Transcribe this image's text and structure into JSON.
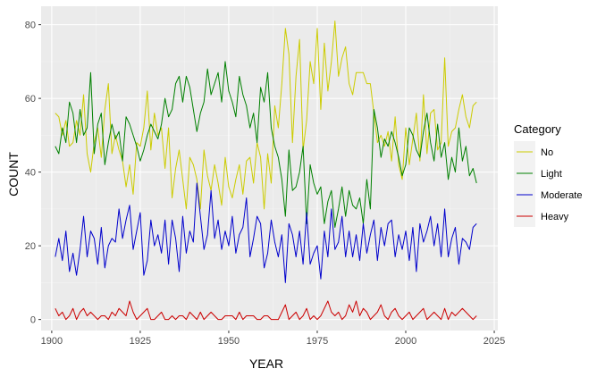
{
  "chart_data": {
    "type": "line",
    "title": "",
    "xlabel": "YEAR",
    "ylabel": "COUNT",
    "xlim": [
      1897,
      2026
    ],
    "ylim": [
      -3,
      85
    ],
    "x_ticks": [
      1900,
      1925,
      1950,
      1975,
      2000,
      2025
    ],
    "y_ticks": [
      0,
      20,
      40,
      60,
      80
    ],
    "grid": true,
    "legend": {
      "title": "Category",
      "position": "right"
    },
    "x": [
      1901,
      1902,
      1903,
      1904,
      1905,
      1906,
      1907,
      1908,
      1909,
      1910,
      1911,
      1912,
      1913,
      1914,
      1915,
      1916,
      1917,
      1918,
      1919,
      1920,
      1921,
      1922,
      1923,
      1924,
      1925,
      1926,
      1927,
      1928,
      1929,
      1930,
      1931,
      1932,
      1933,
      1934,
      1935,
      1936,
      1937,
      1938,
      1939,
      1940,
      1941,
      1942,
      1943,
      1944,
      1945,
      1946,
      1947,
      1948,
      1949,
      1950,
      1951,
      1952,
      1953,
      1954,
      1955,
      1956,
      1957,
      1958,
      1959,
      1960,
      1961,
      1962,
      1963,
      1964,
      1965,
      1966,
      1967,
      1968,
      1969,
      1970,
      1971,
      1972,
      1973,
      1974,
      1975,
      1976,
      1977,
      1978,
      1979,
      1980,
      1981,
      1982,
      1983,
      1984,
      1985,
      1986,
      1987,
      1988,
      1989,
      1990,
      1991,
      1992,
      1993,
      1994,
      1995,
      1996,
      1997,
      1998,
      1999,
      2000,
      2001,
      2002,
      2003,
      2004,
      2005,
      2006,
      2007,
      2008,
      2009,
      2010,
      2011,
      2012,
      2013,
      2014,
      2015,
      2016,
      2017,
      2018,
      2019,
      2020
    ],
    "series": [
      {
        "name": "No",
        "color": "#cccc00",
        "values": [
          56,
          55,
          50,
          54,
          47,
          48,
          54,
          50,
          61,
          45,
          40,
          48,
          52,
          44,
          57,
          64,
          45,
          50,
          46,
          43,
          36,
          42,
          34,
          48,
          47,
          52,
          62,
          46,
          56,
          50,
          52,
          41,
          52,
          33,
          41,
          46,
          38,
          30,
          44,
          42,
          38,
          30,
          46,
          39,
          35,
          42,
          37,
          31,
          44,
          36,
          33,
          38,
          42,
          34,
          43,
          44,
          37,
          48,
          44,
          30,
          45,
          37,
          58,
          52,
          64,
          79,
          72,
          48,
          66,
          76,
          46,
          54,
          70,
          64,
          79,
          57,
          75,
          62,
          70,
          81,
          66,
          71,
          74,
          64,
          61,
          67,
          67,
          67,
          64,
          64,
          56,
          48,
          50,
          47,
          51,
          43,
          55,
          42,
          38,
          52,
          42,
          49,
          56,
          43,
          61,
          45,
          56,
          57,
          46,
          48,
          71,
          47,
          51,
          52,
          57,
          61,
          55,
          52,
          58,
          59
        ]
      },
      {
        "name": "Light",
        "color": "#008000",
        "values": [
          47,
          45,
          52,
          48,
          59,
          56,
          48,
          57,
          50,
          52,
          67,
          45,
          53,
          56,
          42,
          48,
          53,
          49,
          51,
          43,
          55,
          53,
          50,
          47,
          43,
          46,
          50,
          53,
          51,
          49,
          53,
          60,
          55,
          57,
          64,
          66,
          59,
          66,
          63,
          57,
          51,
          56,
          59,
          68,
          61,
          64,
          67,
          59,
          70,
          62,
          59,
          55,
          66,
          61,
          58,
          52,
          56,
          48,
          63,
          59,
          67,
          52,
          47,
          44,
          38,
          28,
          46,
          35,
          36,
          40,
          47,
          26,
          42,
          37,
          34,
          36,
          26,
          32,
          35,
          25,
          30,
          36,
          28,
          35,
          31,
          30,
          33,
          26,
          38,
          30,
          57,
          52,
          44,
          49,
          47,
          51,
          48,
          44,
          39,
          42,
          52,
          50,
          46,
          44,
          51,
          56,
          48,
          43,
          53,
          44,
          48,
          38,
          44,
          40,
          52,
          43,
          47,
          39,
          41,
          37
        ]
      },
      {
        "name": "Moderate",
        "color": "#0000cc",
        "values": [
          17,
          22,
          16,
          24,
          13,
          18,
          12,
          19,
          28,
          17,
          24,
          22,
          15,
          25,
          14,
          20,
          22,
          21,
          30,
          22,
          27,
          31,
          19,
          24,
          29,
          12,
          16,
          27,
          20,
          23,
          18,
          27,
          15,
          27,
          22,
          13,
          28,
          18,
          24,
          21,
          37,
          28,
          19,
          23,
          35,
          22,
          27,
          19,
          24,
          20,
          28,
          18,
          23,
          25,
          33,
          17,
          22,
          28,
          26,
          14,
          18,
          27,
          21,
          17,
          23,
          10,
          26,
          23,
          17,
          24,
          15,
          29,
          15,
          18,
          20,
          11,
          24,
          17,
          30,
          19,
          21,
          28,
          17,
          24,
          17,
          23,
          16,
          26,
          18,
          23,
          27,
          16,
          25,
          20,
          26,
          27,
          17,
          23,
          19,
          24,
          16,
          25,
          13,
          26,
          21,
          24,
          28,
          20,
          26,
          17,
          30,
          17,
          22,
          25,
          15,
          22,
          21,
          19,
          25,
          26
        ]
      },
      {
        "name": "Heavy",
        "color": "#cc0000",
        "values": [
          3,
          1,
          2,
          0,
          1,
          3,
          0,
          2,
          3,
          1,
          2,
          1,
          0,
          1,
          1,
          0,
          2,
          1,
          3,
          2,
          1,
          5,
          2,
          0,
          1,
          2,
          3,
          0,
          0,
          1,
          2,
          0,
          0,
          1,
          0,
          1,
          1,
          0,
          2,
          1,
          0,
          2,
          0,
          1,
          2,
          1,
          0,
          0,
          1,
          1,
          1,
          0,
          2,
          0,
          1,
          1,
          1,
          0,
          0,
          1,
          1,
          0,
          0,
          0,
          2,
          4,
          0,
          1,
          2,
          0,
          1,
          3,
          0,
          1,
          0,
          1,
          3,
          5,
          2,
          1,
          2,
          0,
          1,
          4,
          2,
          5,
          1,
          3,
          2,
          0,
          1,
          2,
          4,
          1,
          0,
          2,
          3,
          1,
          0,
          1,
          2,
          0,
          1,
          2,
          3,
          0,
          1,
          2,
          1,
          0,
          3,
          0,
          2,
          1,
          2,
          3,
          2,
          1,
          0,
          1
        ]
      }
    ]
  }
}
